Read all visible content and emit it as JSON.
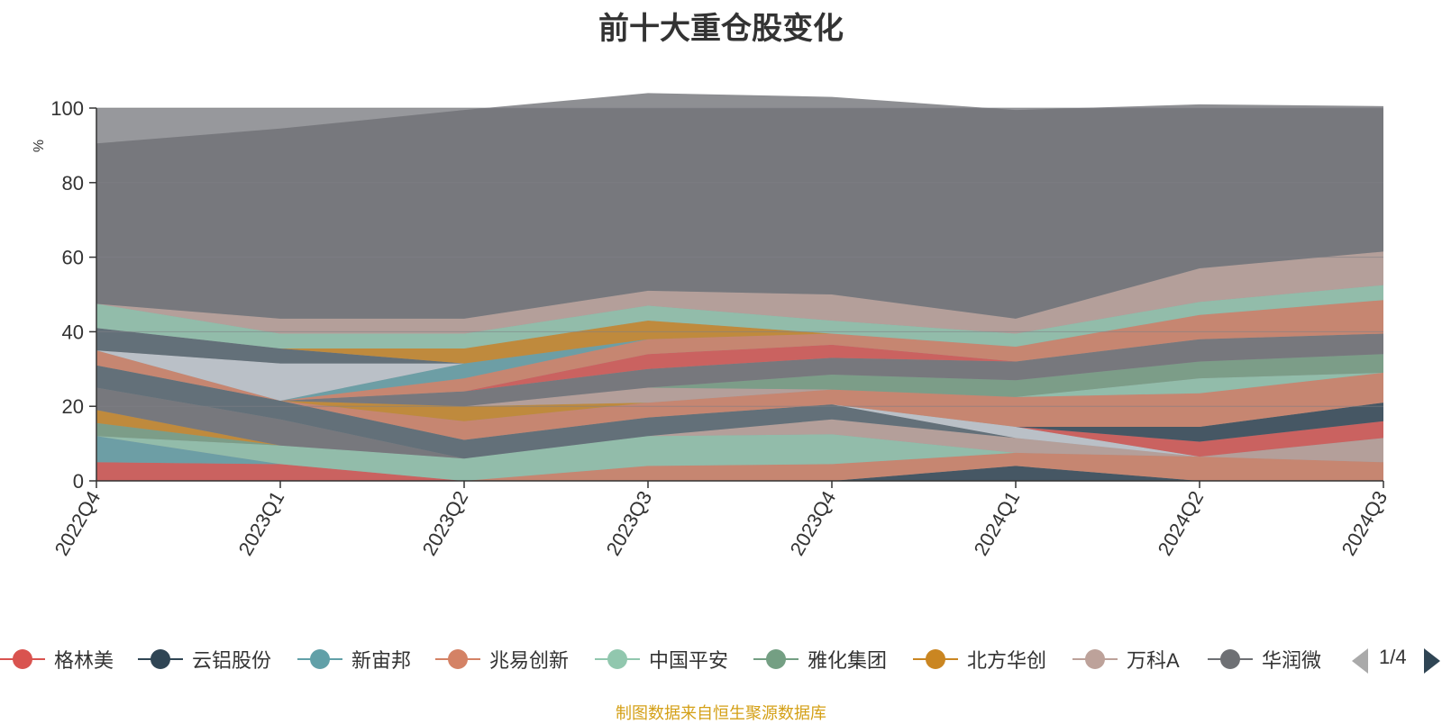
{
  "chart_data": {
    "type": "area",
    "stacked": true,
    "title": "前十大重仓股变化",
    "ylabel": "%",
    "ylim": [
      0,
      100
    ],
    "y_ticks": [
      "0",
      "20",
      "40",
      "60",
      "80",
      "100"
    ],
    "grid": true,
    "legend_position": "bottom",
    "categories": [
      "2022Q4",
      "2023Q1",
      "2023Q2",
      "2023Q3",
      "2023Q4",
      "2024Q1",
      "2024Q2",
      "2024Q3"
    ],
    "series": [
      {
        "name": "格林美",
        "color": "#d9534f",
        "values": [
          5,
          4.5,
          0,
          0,
          0,
          0,
          0,
          0
        ]
      },
      {
        "name": "云铝股份",
        "color": "#2f4554",
        "values": [
          0,
          0,
          0,
          0,
          0,
          4,
          0,
          0
        ]
      },
      {
        "name": "新宙邦",
        "color": "#61a0a8",
        "values": [
          7,
          0,
          0,
          0,
          0,
          0,
          0,
          0
        ]
      },
      {
        "name": "兆易创新",
        "color": "#d48265",
        "values": [
          0,
          0,
          0,
          4,
          4.5,
          3.5,
          6.5,
          5
        ]
      },
      {
        "name": "中国平安",
        "color": "#91c7ae",
        "values": [
          0,
          5,
          6,
          8,
          8,
          0,
          0,
          0
        ]
      },
      {
        "name": "雅化集团",
        "color": "#749f83",
        "values": [
          3.5,
          0,
          0,
          0,
          0,
          0,
          0,
          0
        ]
      },
      {
        "name": "北方华创",
        "color": "#ca8622",
        "values": [
          3.5,
          0,
          0,
          0,
          0,
          0,
          0,
          0
        ]
      },
      {
        "name": "万科A",
        "color": "#bda29a",
        "values": [
          0,
          0,
          0,
          0,
          4,
          4,
          0,
          6.5
        ]
      },
      {
        "name": "华润微",
        "color": "#6e7074",
        "values": [
          6,
          7,
          0,
          0,
          0,
          0,
          0,
          0
        ]
      }
    ],
    "other_series": [
      {
        "color": "#546570",
        "values": [
          6,
          5,
          5,
          5,
          4,
          0,
          0,
          0
        ]
      },
      {
        "color": "#c4ccd3",
        "values": [
          0,
          0,
          0,
          0,
          0,
          3,
          0,
          0
        ]
      },
      {
        "color": "#d9534f",
        "values": [
          0,
          0,
          0,
          0,
          0,
          0,
          4,
          4.5
        ]
      },
      {
        "color": "#2f4554",
        "values": [
          0,
          0,
          0,
          0,
          0,
          0,
          4,
          5
        ]
      },
      {
        "color": "#d48265",
        "values": [
          0,
          0,
          5,
          4,
          4,
          8,
          9,
          8
        ]
      },
      {
        "color": "#91c7ae",
        "values": [
          0,
          0,
          0,
          0,
          0,
          0,
          4,
          0
        ]
      },
      {
        "color": "#ca8622",
        "values": [
          0,
          0,
          4,
          0,
          0,
          0,
          0,
          0
        ]
      },
      {
        "color": "#bda29a",
        "values": [
          0,
          0,
          0,
          4,
          0,
          0,
          0,
          0
        ]
      },
      {
        "color": "#749f83",
        "values": [
          0,
          0,
          0,
          0,
          4,
          4.5,
          4.5,
          5
        ]
      },
      {
        "color": "#6e7074",
        "values": [
          0,
          0,
          4,
          5,
          4.5,
          5,
          6,
          5.5
        ]
      },
      {
        "color": "#d9534f",
        "values": [
          0,
          0,
          0,
          4,
          3.5,
          0,
          0,
          0
        ]
      },
      {
        "color": "#d48265",
        "values": [
          4,
          0,
          3.5,
          4,
          3,
          4,
          6.5,
          9
        ]
      },
      {
        "color": "#61a0a8",
        "values": [
          0,
          0,
          4,
          0,
          0,
          0,
          0,
          0
        ]
      },
      {
        "color": "#c4ccd3",
        "values": [
          0,
          10,
          0,
          0,
          0,
          0,
          0,
          0
        ]
      },
      {
        "color": "#546570",
        "values": [
          6,
          4,
          0,
          0,
          0,
          0,
          0,
          0
        ]
      },
      {
        "color": "#ca8622",
        "values": [
          0,
          0,
          4,
          5,
          0,
          0,
          0,
          0
        ]
      },
      {
        "color": "#91c7ae",
        "values": [
          6.5,
          4,
          4,
          4,
          3.5,
          3.5,
          3.5,
          4
        ]
      },
      {
        "color": "#bda29a",
        "values": [
          0,
          4,
          4,
          4,
          7,
          4,
          9,
          9
        ]
      },
      {
        "color": "#6e7074",
        "values": [
          43,
          51,
          56,
          53,
          53,
          56,
          44,
          39
        ]
      }
    ]
  },
  "legend": {
    "items": [
      {
        "label": "格林美",
        "color": "#d9534f"
      },
      {
        "label": "云铝股份",
        "color": "#2f4554"
      },
      {
        "label": "新宙邦",
        "color": "#61a0a8"
      },
      {
        "label": "兆易创新",
        "color": "#d48265"
      },
      {
        "label": "中国平安",
        "color": "#91c7ae"
      },
      {
        "label": "雅化集团",
        "color": "#749f83"
      },
      {
        "label": "北方华创",
        "color": "#ca8622"
      },
      {
        "label": "万科A",
        "color": "#bda29a"
      },
      {
        "label": "华润微",
        "color": "#6e7074"
      }
    ],
    "page": "1/4"
  },
  "footer": {
    "source_note": "制图数据来自恒生聚源数据库"
  }
}
